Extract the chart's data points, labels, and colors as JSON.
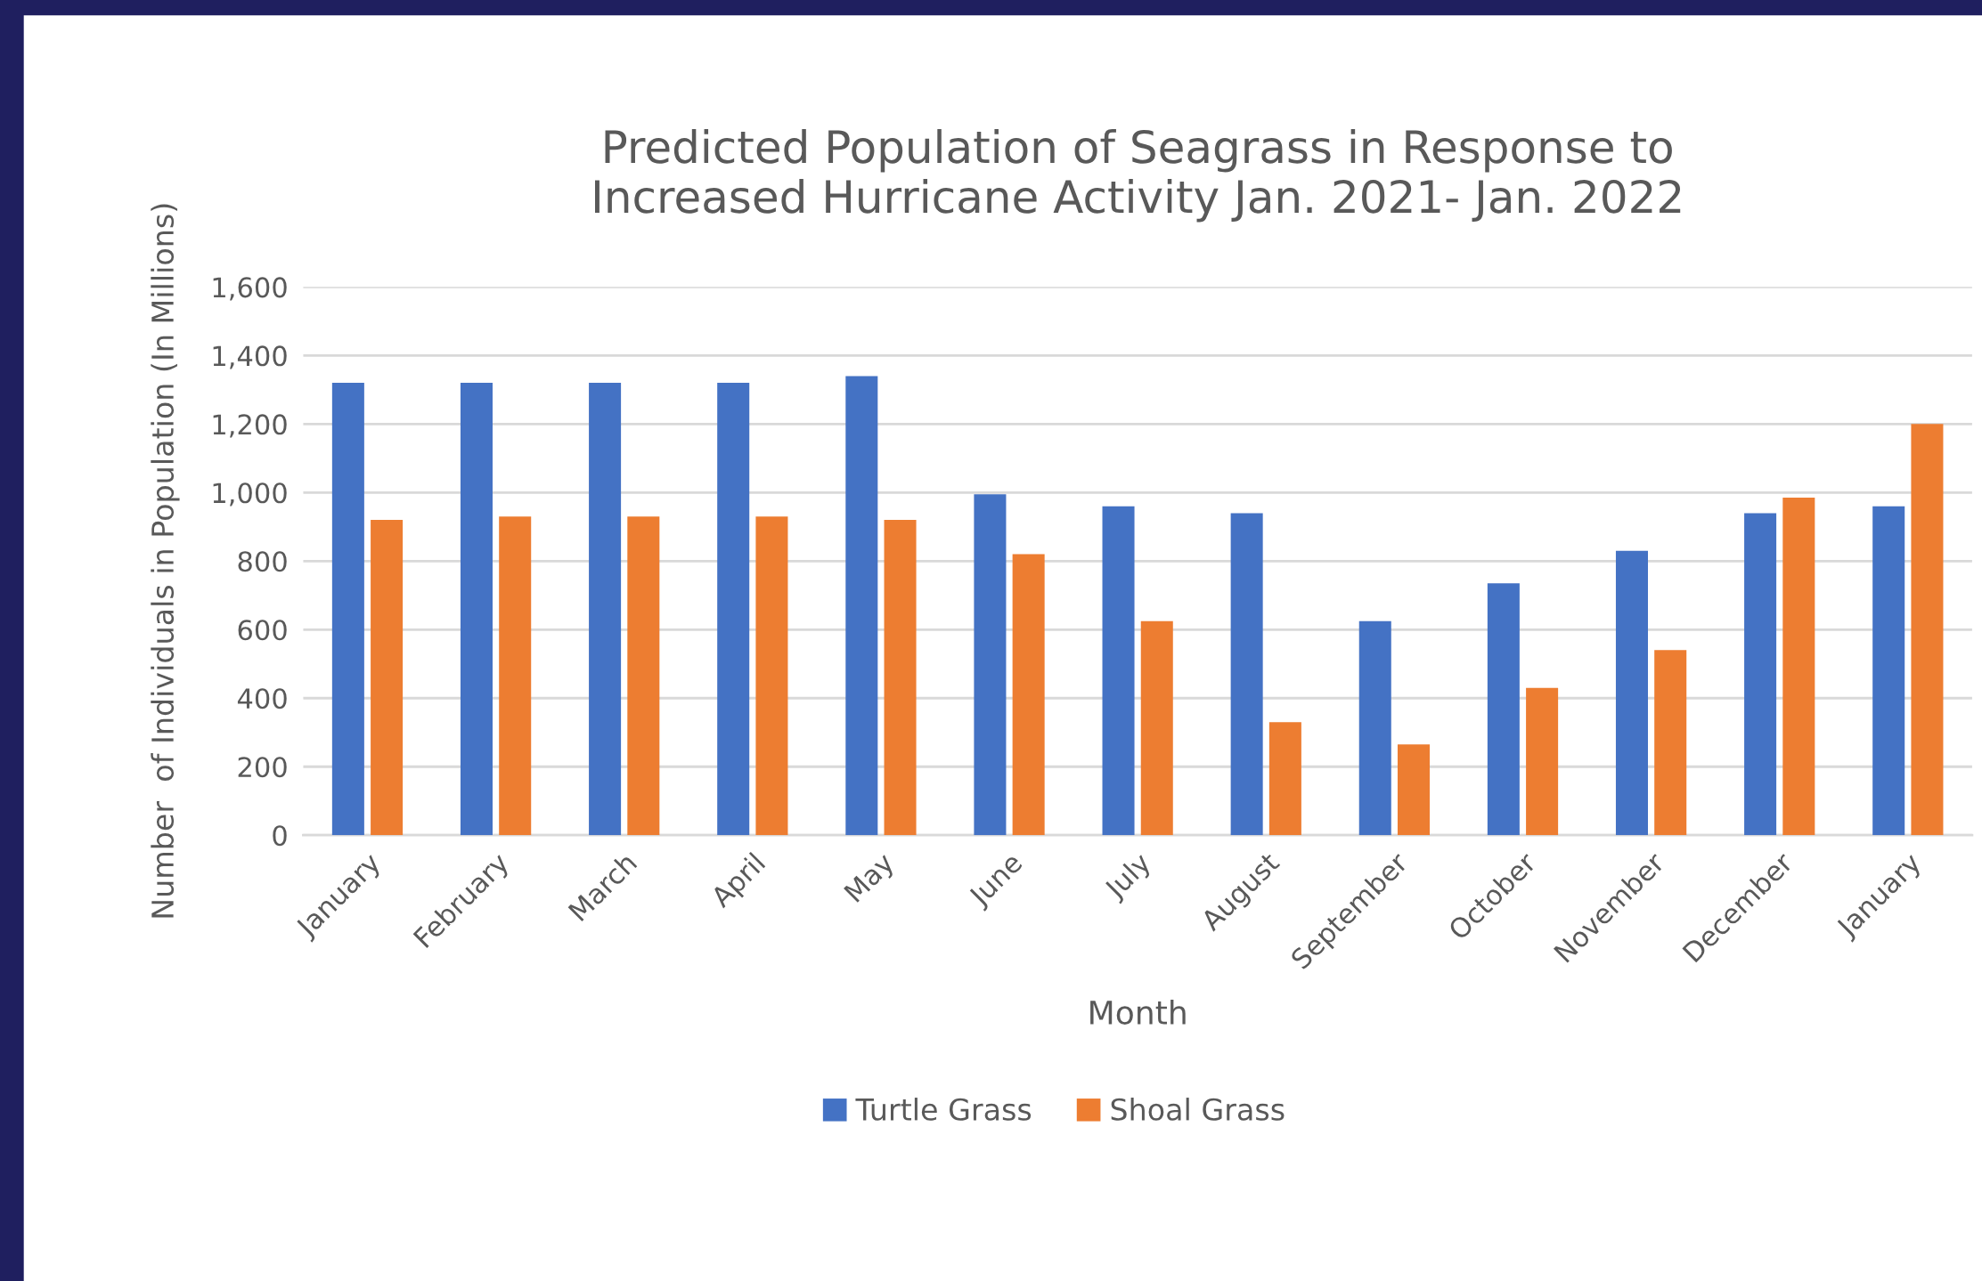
{
  "chart_data": {
    "type": "bar",
    "title": "Predicted Population of Seagrass in Response to\nIncreased Hurricane Activity Jan. 2021- Jan. 2022",
    "xlabel": "Month",
    "ylabel": "Number  of Individuals in Population (In Millions)",
    "categories": [
      "January",
      "February",
      "March",
      "April",
      "May",
      "June",
      "July",
      "August",
      "September",
      "October",
      "November",
      "December",
      "January"
    ],
    "series": [
      {
        "name": "Turtle Grass",
        "color": "#4472c4",
        "values": [
          1320,
          1320,
          1320,
          1320,
          1340,
          995,
          960,
          940,
          625,
          735,
          830,
          940,
          960
        ]
      },
      {
        "name": "Shoal Grass",
        "color": "#ed7d31",
        "values": [
          920,
          930,
          930,
          930,
          920,
          820,
          625,
          330,
          265,
          430,
          540,
          985,
          1200
        ]
      }
    ],
    "ylim": [
      0,
      1600
    ],
    "yticks": [
      {
        "value": 0,
        "label": "0"
      },
      {
        "value": 200,
        "label": "200"
      },
      {
        "value": 400,
        "label": "400"
      },
      {
        "value": 600,
        "label": "600"
      },
      {
        "value": 800,
        "label": "800"
      },
      {
        "value": 1000,
        "label": "1,000"
      },
      {
        "value": 1200,
        "label": "1,200"
      },
      {
        "value": 1400,
        "label": "1,400"
      },
      {
        "value": 1600,
        "label": "1,600"
      }
    ],
    "grid": "y",
    "legend": "bottom"
  }
}
